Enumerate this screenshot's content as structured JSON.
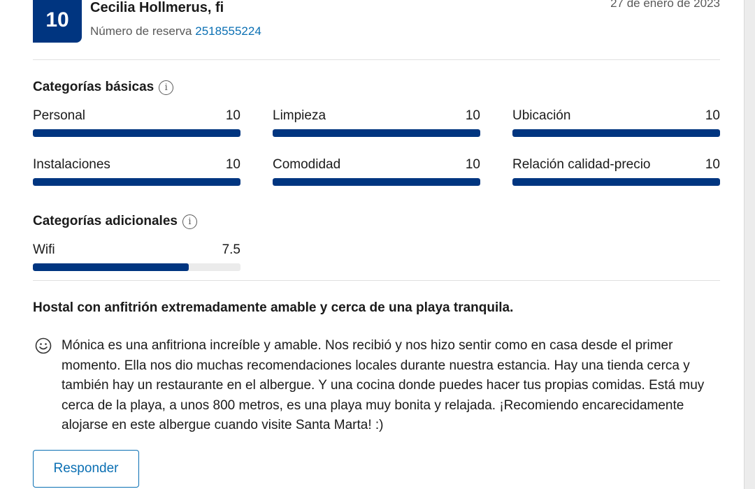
{
  "review": {
    "score": "10",
    "reviewer": "Cecilia Hollmerus, fi",
    "reservation_label": "Número de reserva",
    "reservation_number": "2518555224",
    "date": "27 de enero de 2023",
    "title": "Hostal con anfitrión extremadamente amable y cerca de una playa tranquila.",
    "text": "Mónica es una anfitriona increíble y amable. Nos recibió y nos hizo sentir como en casa desde el primer momento. Ella nos dio muchas recomendaciones locales durante nuestra estancia. Hay una tienda cerca y también hay un restaurante en el albergue. Y una cocina donde puedes hacer tus propias comidas. Está muy cerca de la playa, a unos 800 metros, es una playa muy bonita y relajada. ¡Recomiendo encarecidamente alojarse en este albergue cuando visite Santa Marta! :)"
  },
  "basic": {
    "title": "Categorías básicas",
    "categories": [
      {
        "label": "Personal",
        "score": "10",
        "fraction": 1.0
      },
      {
        "label": "Limpieza",
        "score": "10",
        "fraction": 1.0
      },
      {
        "label": "Ubicación",
        "score": "10",
        "fraction": 1.0
      },
      {
        "label": "Instalaciones",
        "score": "10",
        "fraction": 1.0
      },
      {
        "label": "Comodidad",
        "score": "10",
        "fraction": 1.0
      },
      {
        "label": "Relación calidad-precio",
        "score": "10",
        "fraction": 1.0
      }
    ]
  },
  "additional": {
    "title": "Categorías adicionales",
    "categories": [
      {
        "label": "Wifi",
        "score": "7.5",
        "fraction": 0.75
      }
    ]
  },
  "actions": {
    "reply_label": "Responder"
  },
  "icons": {
    "info": "info-icon",
    "mood": "smiley-face-icon"
  },
  "colors": {
    "accent": "#003580",
    "link": "#0a6fb3"
  }
}
